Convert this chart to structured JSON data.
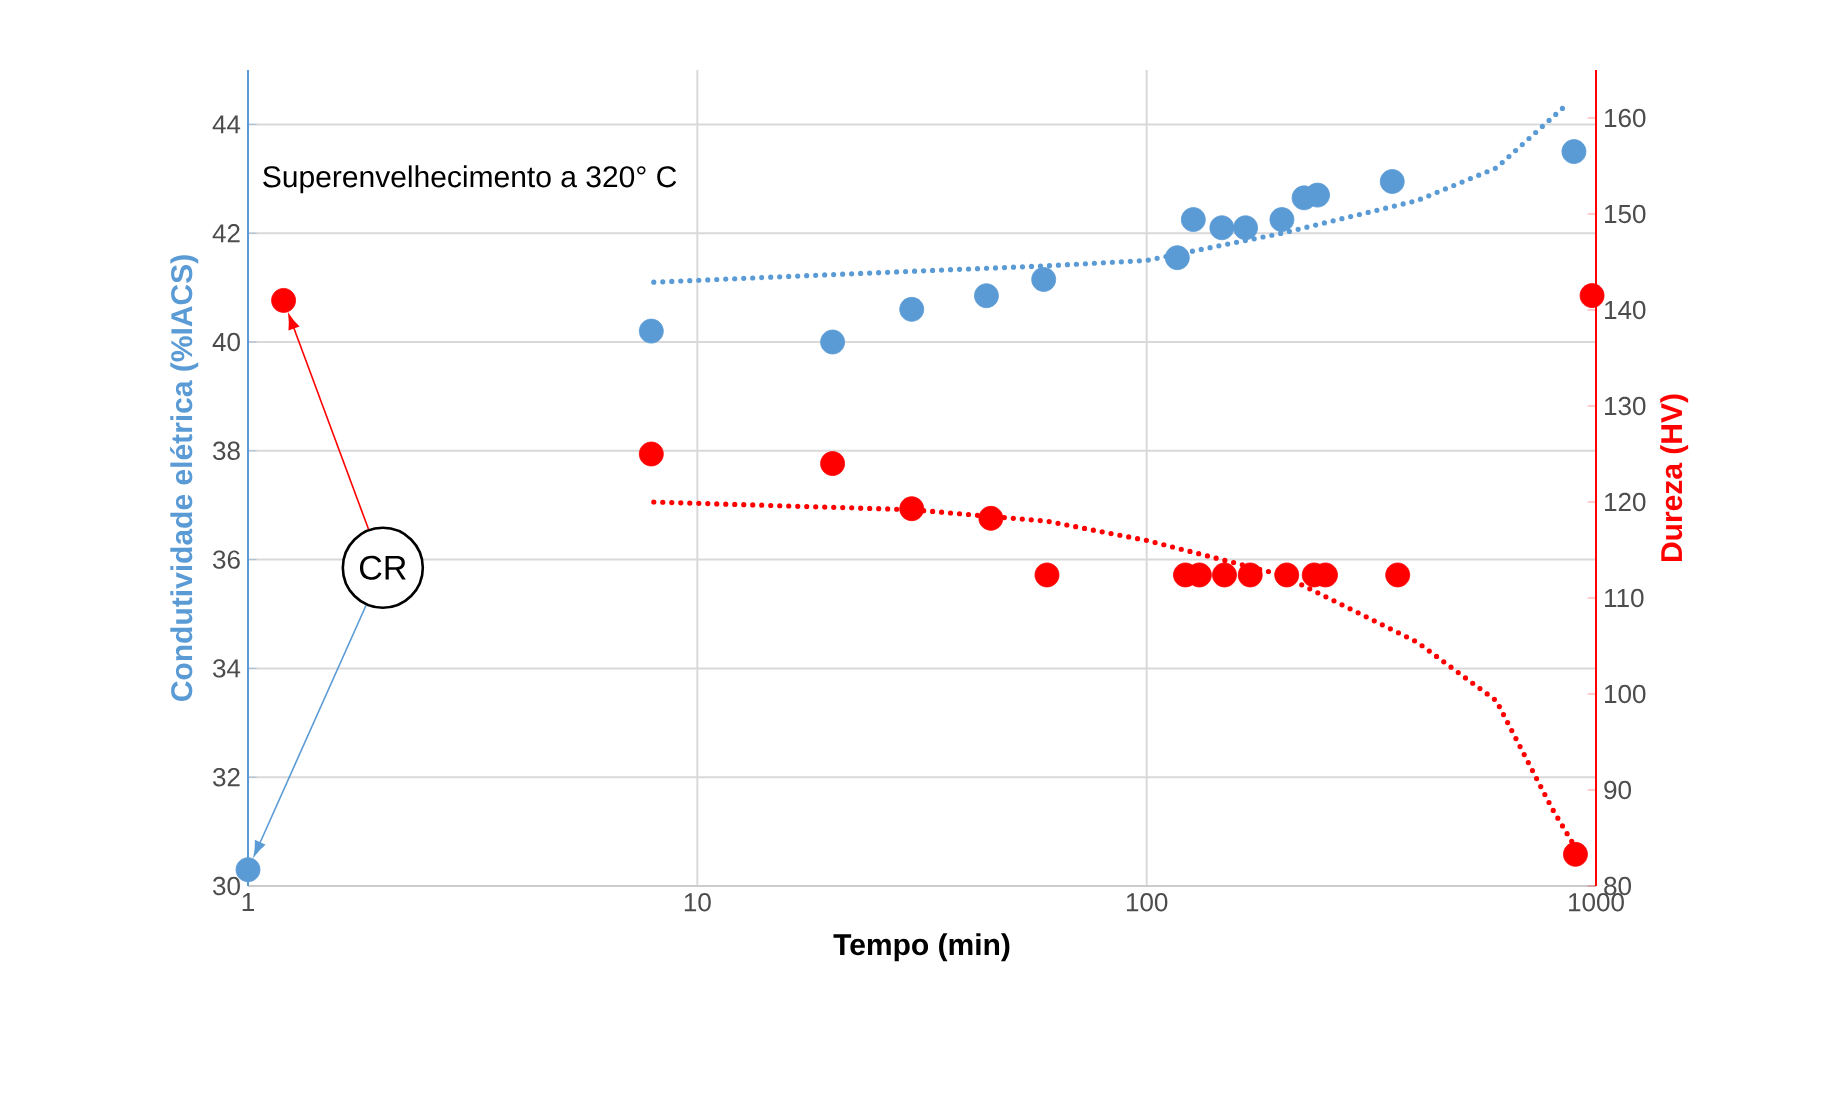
{
  "chart_data": {
    "type": "scatter",
    "xlabel": "Tempo (min)",
    "ylabel": "Condutividade  elétrica (%IACS)",
    "y2label": "Dureza (HV)",
    "log": "x",
    "grid": true,
    "marker": "circle",
    "xlim": [
      1,
      1000
    ],
    "xticks": [
      1,
      10,
      100,
      1000
    ],
    "ylim": [
      30,
      45
    ],
    "yticks": [
      30,
      32,
      34,
      36,
      38,
      40,
      42,
      44
    ],
    "y2lim": [
      80,
      165
    ],
    "y2ticks": [
      80,
      90,
      100,
      110,
      120,
      130,
      140,
      150,
      160
    ],
    "annotations": [
      "Superenvelhecimento  a 320° C",
      "CR"
    ],
    "series": [
      {
        "type": "scatter",
        "axis": "y",
        "color": "#5b9bd5",
        "x": [
          1,
          7.9,
          20,
          30,
          44,
          59,
          117,
          127,
          147,
          166,
          200,
          224,
          240,
          352,
          893
        ],
        "values": [
          30.3,
          40.2,
          40.0,
          40.6,
          40.85,
          41.15,
          41.55,
          42.25,
          42.1,
          42.1,
          42.25,
          42.65,
          42.7,
          42.95,
          43.5
        ]
      },
      {
        "type": "scatter",
        "axis": "y2",
        "color": "#ff0000",
        "x": [
          1.2,
          7.9,
          20,
          30,
          45,
          60,
          122,
          131,
          149,
          170,
          205,
          236,
          250,
          362,
          900,
          980
        ],
        "values": [
          141,
          125,
          124,
          119.3,
          118.3,
          112.4,
          112.4,
          112.4,
          112.4,
          112.4,
          112.4,
          112.4,
          112.4,
          112.4,
          83.3,
          141.5
        ]
      },
      {
        "type": "line",
        "axis": "y",
        "color": "#5b9bd5",
        "line_style": "dotted",
        "marker": "none",
        "x": [
          8,
          30,
          60,
          100,
          200,
          400,
          600,
          870
        ],
        "values": [
          41.1,
          41.3,
          41.4,
          41.5,
          42.0,
          42.6,
          43.2,
          44.4
        ]
      },
      {
        "type": "line",
        "axis": "y2",
        "color": "#ff0000",
        "line_style": "dotted",
        "marker": "none",
        "x": [
          8,
          30,
          60,
          100,
          200,
          400,
          600,
          800,
          900
        ],
        "values": [
          120,
          119.2,
          118,
          116,
          112.4,
          105.4,
          99.3,
          88,
          84
        ]
      }
    ]
  }
}
